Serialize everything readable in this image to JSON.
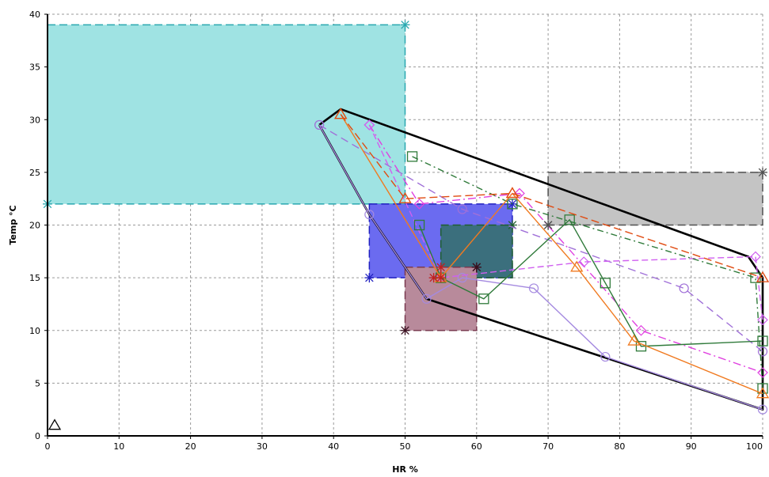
{
  "chart_data": {
    "type": "scatter",
    "title": "",
    "xlabel": "HR %",
    "ylabel": "Temp °C",
    "xlim": [
      0,
      100
    ],
    "ylim": [
      0,
      40
    ],
    "x_ticks": [
      0,
      10,
      20,
      30,
      40,
      50,
      60,
      70,
      80,
      90,
      100
    ],
    "y_ticks": [
      0,
      5,
      10,
      15,
      20,
      25,
      30,
      35,
      40
    ],
    "grid": true,
    "legend": "none",
    "zones": [
      {
        "x": [
          0,
          50
        ],
        "y": [
          22,
          39
        ],
        "fill": "#9fe3e3",
        "stroke": "#2aa8b0",
        "corner_marker_color": "#2aa8b0"
      },
      {
        "x": [
          45,
          65
        ],
        "y": [
          15,
          22
        ],
        "fill": "#6b6bf0",
        "stroke": "#2020c0",
        "corner_marker_color": "#2020c0"
      },
      {
        "x": [
          55,
          65
        ],
        "y": [
          15,
          20
        ],
        "fill": "#3b6f7d",
        "stroke": "#1f5f2f",
        "corner_marker_color": "#1f5f2f"
      },
      {
        "x": [
          50,
          60
        ],
        "y": [
          10,
          16
        ],
        "fill": "#b88a9b",
        "stroke": "#7a3a50",
        "corner_marker_color": "#3a1020"
      },
      {
        "x": [
          70,
          100
        ],
        "y": [
          20,
          25
        ],
        "fill": "#c4c4c4",
        "stroke": "#505050",
        "corner_marker_color": "#505050"
      }
    ],
    "envelope": {
      "x": [
        38,
        41,
        98,
        100,
        100,
        53,
        45,
        38
      ],
      "y": [
        29.5,
        31,
        17,
        15,
        2.5,
        13,
        21,
        29.5
      ],
      "color": "#000000"
    },
    "series": [
      {
        "marker": "circle",
        "color": "#a58ae0",
        "dash": "",
        "x": [
          38,
          45,
          53,
          58,
          68,
          78,
          100
        ],
        "y": [
          29.5,
          21,
          13,
          15,
          14,
          7.5,
          2.5
        ]
      },
      {
        "marker": "circle",
        "color": "#a070d8",
        "dash": "10 6",
        "x": [
          38,
          58,
          89,
          100
        ],
        "y": [
          29.5,
          21.5,
          14,
          8
        ]
      },
      {
        "marker": "diamond",
        "color": "#e040e0",
        "dash": "10 4 2 4",
        "x": [
          45,
          52,
          66,
          83,
          100
        ],
        "y": [
          29.5,
          22,
          23,
          10,
          6
        ]
      },
      {
        "marker": "diamond",
        "color": "#d060f0",
        "dash": "8 4",
        "x": [
          45,
          55,
          75,
          99,
          100
        ],
        "y": [
          29.5,
          15,
          16.5,
          17,
          11
        ]
      },
      {
        "marker": "square",
        "color": "#2f7a3a",
        "dash": "8 4 2 4",
        "x": [
          51,
          65,
          99,
          100
        ],
        "y": [
          26.5,
          22,
          15,
          4.5
        ]
      },
      {
        "marker": "square",
        "color": "#2f7a3a",
        "dash": "",
        "x": [
          52,
          55,
          61,
          73,
          78,
          83,
          100
        ],
        "y": [
          20,
          15,
          13,
          20.5,
          14.5,
          8.5,
          9
        ]
      },
      {
        "marker": "triangle",
        "color": "#f07a20",
        "dash": "",
        "x": [
          41,
          55,
          65,
          74,
          82,
          100
        ],
        "y": [
          30.5,
          15,
          23,
          16,
          9,
          4
        ]
      },
      {
        "marker": "triangle",
        "color": "#e04a10",
        "dash": "10 5",
        "x": [
          41,
          50,
          65,
          100
        ],
        "y": [
          30.5,
          22.5,
          23,
          15
        ]
      },
      {
        "marker": "star",
        "color": "#c02020",
        "dash": "",
        "x": [
          54,
          55,
          55
        ],
        "y": [
          15,
          15,
          16
        ]
      }
    ],
    "stray_points": [
      {
        "marker": "triangle",
        "color": "#000000",
        "x": 1,
        "y": 1
      },
      {
        "marker": "star",
        "color": "#3a1020",
        "x": 60,
        "y": 16
      },
      {
        "marker": "star",
        "color": "#505050",
        "x": 70,
        "y": 20
      }
    ]
  }
}
